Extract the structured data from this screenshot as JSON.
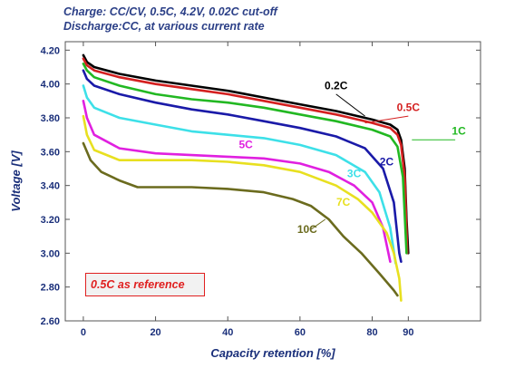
{
  "header": {
    "line1": "Charge: CC/CV, 0.5C, 4.2V, 0.02C cut-off",
    "line2": "Discharge:CC, at various current rate"
  },
  "annotation": {
    "text": "0.5C as reference"
  },
  "chart_data": {
    "type": "line",
    "title": "",
    "xlabel": "Capacity retention [%]",
    "ylabel": "Voltage [V]",
    "xlim": [
      -5,
      110
    ],
    "ylim": [
      2.6,
      4.25
    ],
    "xticks": [
      0,
      20,
      40,
      60,
      80,
      90
    ],
    "yticks": [
      2.6,
      2.8,
      3.0,
      3.2,
      3.4,
      3.6,
      3.8,
      4.0,
      4.2
    ],
    "ytick_labels": [
      "2.60",
      "2.80",
      "3.00",
      "3.20",
      "3.40",
      "3.60",
      "3.80",
      "4.00",
      "4.20"
    ],
    "grid": false,
    "legend": "none (inline labels)",
    "series": [
      {
        "name": "0.2C",
        "color": "#000000",
        "points": [
          [
            0,
            4.17
          ],
          [
            1,
            4.13
          ],
          [
            3,
            4.1
          ],
          [
            10,
            4.06
          ],
          [
            20,
            4.02
          ],
          [
            30,
            3.99
          ],
          [
            40,
            3.96
          ],
          [
            50,
            3.92
          ],
          [
            60,
            3.88
          ],
          [
            70,
            3.84
          ],
          [
            80,
            3.79
          ],
          [
            85,
            3.76
          ],
          [
            87,
            3.73
          ],
          [
            88,
            3.67
          ],
          [
            89,
            3.5
          ],
          [
            89.5,
            3.2
          ],
          [
            90,
            3.0
          ]
        ]
      },
      {
        "name": "0.5C",
        "color": "#d42020",
        "points": [
          [
            0,
            4.15
          ],
          [
            1,
            4.11
          ],
          [
            3,
            4.08
          ],
          [
            10,
            4.04
          ],
          [
            20,
            4.0
          ],
          [
            30,
            3.97
          ],
          [
            40,
            3.94
          ],
          [
            50,
            3.9
          ],
          [
            60,
            3.86
          ],
          [
            70,
            3.82
          ],
          [
            80,
            3.77
          ],
          [
            85,
            3.74
          ],
          [
            87,
            3.7
          ],
          [
            88,
            3.64
          ],
          [
            89,
            3.45
          ],
          [
            89.7,
            3.0
          ]
        ]
      },
      {
        "name": "1C",
        "color": "#22b822",
        "points": [
          [
            0,
            4.12
          ],
          [
            1,
            4.08
          ],
          [
            3,
            4.04
          ],
          [
            10,
            3.99
          ],
          [
            20,
            3.94
          ],
          [
            30,
            3.91
          ],
          [
            40,
            3.89
          ],
          [
            50,
            3.86
          ],
          [
            60,
            3.82
          ],
          [
            70,
            3.78
          ],
          [
            80,
            3.73
          ],
          [
            85,
            3.69
          ],
          [
            87,
            3.63
          ],
          [
            88.5,
            3.45
          ],
          [
            89.5,
            3.0
          ]
        ]
      },
      {
        "name": "2C",
        "color": "#1a1aa8",
        "points": [
          [
            0,
            4.08
          ],
          [
            1,
            4.03
          ],
          [
            3,
            3.99
          ],
          [
            10,
            3.94
          ],
          [
            20,
            3.89
          ],
          [
            30,
            3.85
          ],
          [
            40,
            3.82
          ],
          [
            50,
            3.78
          ],
          [
            60,
            3.74
          ],
          [
            70,
            3.69
          ],
          [
            78,
            3.62
          ],
          [
            83,
            3.5
          ],
          [
            86,
            3.3
          ],
          [
            87.5,
            3.0
          ],
          [
            88,
            2.95
          ]
        ]
      },
      {
        "name": "3C",
        "color": "#3de0e8",
        "points": [
          [
            0,
            3.99
          ],
          [
            1,
            3.92
          ],
          [
            3,
            3.86
          ],
          [
            10,
            3.8
          ],
          [
            20,
            3.76
          ],
          [
            30,
            3.72
          ],
          [
            40,
            3.7
          ],
          [
            50,
            3.68
          ],
          [
            60,
            3.64
          ],
          [
            70,
            3.58
          ],
          [
            78,
            3.48
          ],
          [
            82,
            3.36
          ],
          [
            85,
            3.15
          ],
          [
            86.5,
            2.94
          ]
        ]
      },
      {
        "name": "5C",
        "color": "#e020e0",
        "points": [
          [
            0,
            3.9
          ],
          [
            1,
            3.8
          ],
          [
            3,
            3.7
          ],
          [
            10,
            3.62
          ],
          [
            20,
            3.59
          ],
          [
            30,
            3.58
          ],
          [
            40,
            3.57
          ],
          [
            50,
            3.56
          ],
          [
            60,
            3.53
          ],
          [
            68,
            3.48
          ],
          [
            75,
            3.4
          ],
          [
            80,
            3.3
          ],
          [
            83,
            3.15
          ],
          [
            85,
            2.95
          ]
        ]
      },
      {
        "name": "7C",
        "color": "#e8e020",
        "points": [
          [
            0,
            3.81
          ],
          [
            1,
            3.7
          ],
          [
            3,
            3.61
          ],
          [
            10,
            3.55
          ],
          [
            20,
            3.55
          ],
          [
            30,
            3.55
          ],
          [
            40,
            3.54
          ],
          [
            50,
            3.52
          ],
          [
            60,
            3.48
          ],
          [
            70,
            3.4
          ],
          [
            76,
            3.32
          ],
          [
            80,
            3.24
          ],
          [
            84,
            3.12
          ],
          [
            86,
            3.0
          ],
          [
            87.5,
            2.85
          ],
          [
            88,
            2.72
          ]
        ]
      },
      {
        "name": "10C",
        "color": "#6b6b1e",
        "points": [
          [
            0,
            3.65
          ],
          [
            2,
            3.55
          ],
          [
            5,
            3.48
          ],
          [
            10,
            3.43
          ],
          [
            15,
            3.39
          ],
          [
            20,
            3.39
          ],
          [
            30,
            3.39
          ],
          [
            40,
            3.38
          ],
          [
            50,
            3.36
          ],
          [
            58,
            3.32
          ],
          [
            63,
            3.28
          ],
          [
            68,
            3.2
          ],
          [
            72,
            3.1
          ],
          [
            77,
            3.0
          ],
          [
            82,
            2.88
          ],
          [
            86,
            2.78
          ],
          [
            87,
            2.75
          ]
        ]
      }
    ],
    "series_labels": [
      {
        "series": "0.2C",
        "text": "0.2C",
        "color": "#000000",
        "x": 70,
        "y": 3.97
      },
      {
        "series": "0.5C",
        "text": "0.5C",
        "color": "#d42020",
        "x": 90,
        "y": 3.84
      },
      {
        "series": "1C",
        "text": "1C",
        "color": "#22b822",
        "x": 104,
        "y": 3.7
      },
      {
        "series": "2C",
        "text": "2C",
        "color": "#1a1aa8",
        "x": 84,
        "y": 3.52
      },
      {
        "series": "3C",
        "text": "3C",
        "color": "#3de0e8",
        "x": 75,
        "y": 3.45
      },
      {
        "series": "5C",
        "text": "5C",
        "color": "#e020e0",
        "x": 45,
        "y": 3.62
      },
      {
        "series": "7C",
        "text": "7C",
        "color": "#e8e020",
        "x": 72,
        "y": 3.28
      },
      {
        "series": "10C",
        "text": "10C",
        "color": "#6b6b1e",
        "x": 62,
        "y": 3.12
      }
    ],
    "pointers": [
      {
        "series": "0.2C",
        "from": [
          70,
          3.94
        ],
        "to": [
          78,
          3.81
        ],
        "color": "#000000"
      },
      {
        "series": "0.5C",
        "from": [
          90,
          3.81
        ],
        "to": [
          78,
          3.77
        ],
        "color": "#d42020"
      },
      {
        "series": "1C",
        "from": [
          103,
          3.67
        ],
        "to": [
          91,
          3.67
        ],
        "color": "#22b822"
      },
      {
        "series": "10C",
        "from": [
          63,
          3.14
        ],
        "to": [
          67,
          3.2
        ],
        "color": "#6b6b1e"
      }
    ]
  }
}
